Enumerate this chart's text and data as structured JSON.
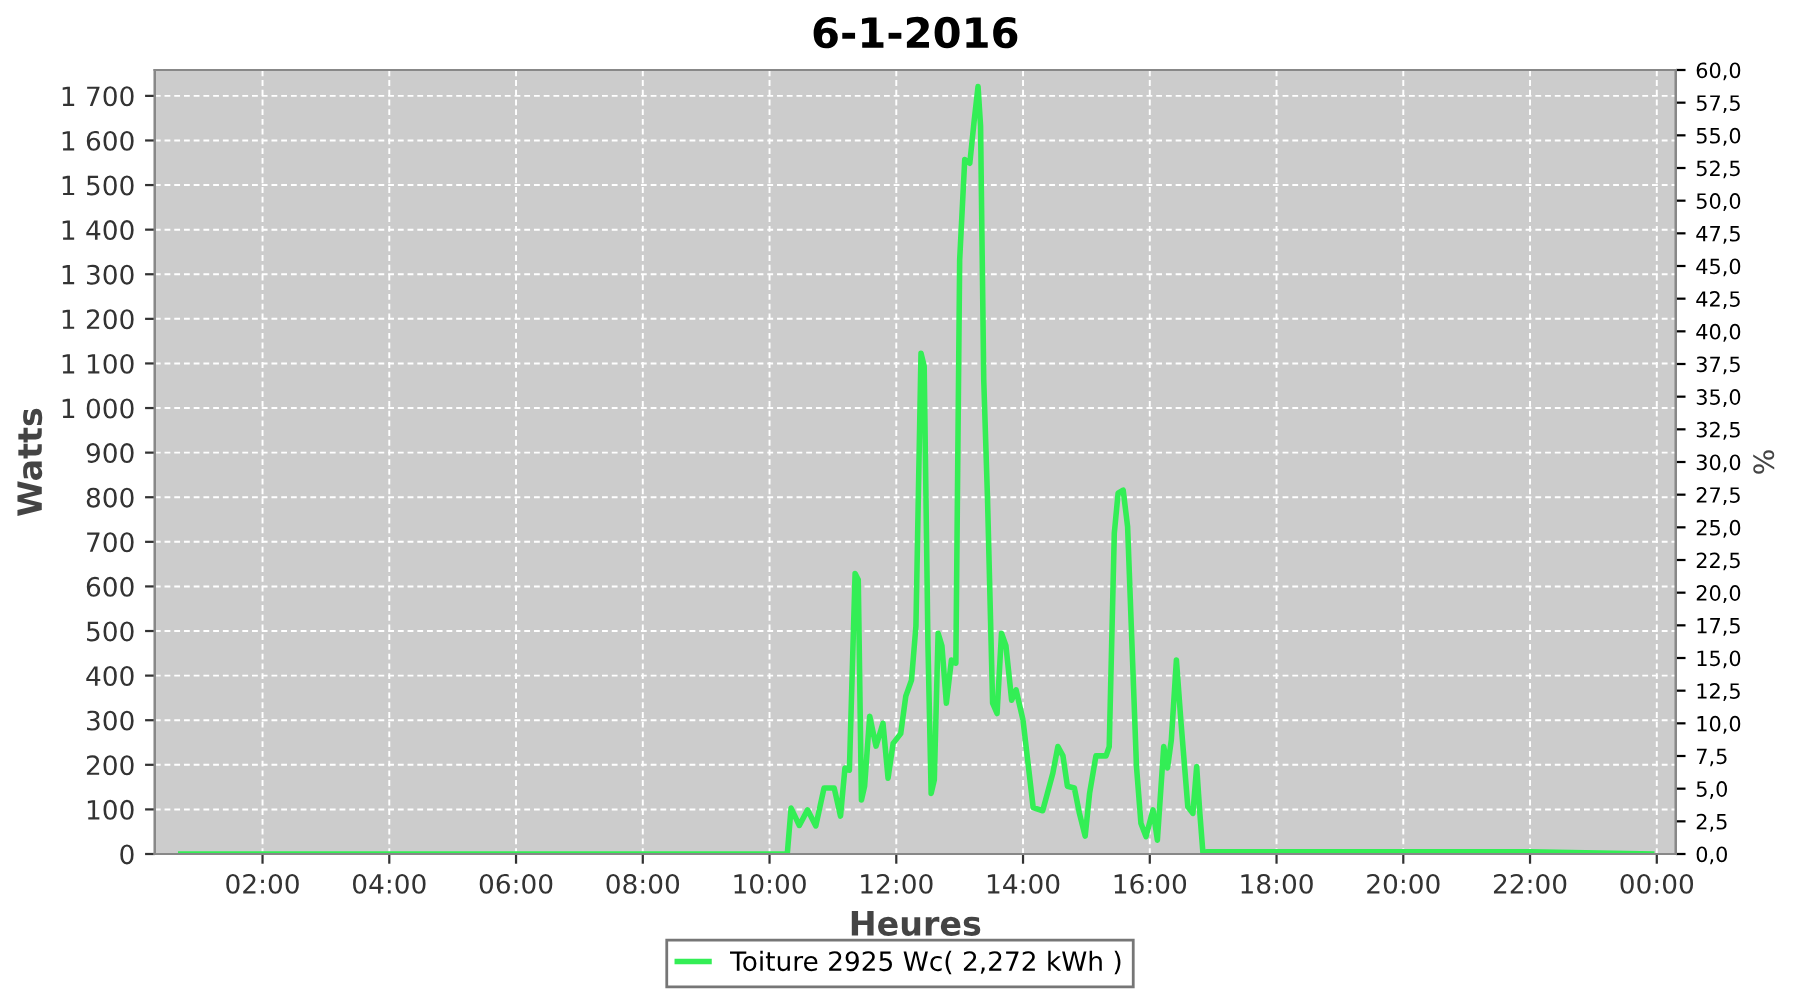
{
  "chart_data": {
    "type": "line",
    "title": "6-1-2016",
    "xlabel": "Heures",
    "ylabel": "Watts",
    "y2label": "%",
    "xlim": [
      0.3,
      24.3
    ],
    "ylim": [
      0,
      1758
    ],
    "y2lim": [
      0,
      60
    ],
    "xticks": [
      {
        "value": 2,
        "label": "02:00"
      },
      {
        "value": 4,
        "label": "04:00"
      },
      {
        "value": 6,
        "label": "06:00"
      },
      {
        "value": 8,
        "label": "08:00"
      },
      {
        "value": 10,
        "label": "10:00"
      },
      {
        "value": 12,
        "label": "12:00"
      },
      {
        "value": 14,
        "label": "14:00"
      },
      {
        "value": 16,
        "label": "16:00"
      },
      {
        "value": 18,
        "label": "18:00"
      },
      {
        "value": 20,
        "label": "20:00"
      },
      {
        "value": 22,
        "label": "22:00"
      },
      {
        "value": 24,
        "label": "00:00"
      }
    ],
    "yticks": [
      0,
      100,
      200,
      300,
      400,
      500,
      600,
      700,
      800,
      900,
      {
        "value": 1000,
        "label": "1 000"
      },
      {
        "value": 1100,
        "label": "1 100"
      },
      {
        "value": 1200,
        "label": "1 200"
      },
      {
        "value": 1300,
        "label": "1 300"
      },
      {
        "value": 1400,
        "label": "1 400"
      },
      {
        "value": 1500,
        "label": "1 500"
      },
      {
        "value": 1600,
        "label": "1 600"
      },
      {
        "value": 1700,
        "label": "1 700"
      }
    ],
    "y2ticks": [
      {
        "value": 0,
        "label": "0,0"
      },
      {
        "value": 2.5,
        "label": "2,5"
      },
      {
        "value": 5,
        "label": "5,0"
      },
      {
        "value": 7.5,
        "label": "7,5"
      },
      {
        "value": 10,
        "label": "10,0"
      },
      {
        "value": 12.5,
        "label": "12,5"
      },
      {
        "value": 15,
        "label": "15,0"
      },
      {
        "value": 17.5,
        "label": "17,5"
      },
      {
        "value": 20,
        "label": "20,0"
      },
      {
        "value": 22.5,
        "label": "22,5"
      },
      {
        "value": 25,
        "label": "25,0"
      },
      {
        "value": 27.5,
        "label": "27,5"
      },
      {
        "value": 30,
        "label": "30,0"
      },
      {
        "value": 32.5,
        "label": "32,5"
      },
      {
        "value": 35,
        "label": "35,0"
      },
      {
        "value": 37.5,
        "label": "37,5"
      },
      {
        "value": 40,
        "label": "40,0"
      },
      {
        "value": 42.5,
        "label": "42,5"
      },
      {
        "value": 45,
        "label": "45,0"
      },
      {
        "value": 47.5,
        "label": "47,5"
      },
      {
        "value": 50,
        "label": "50,0"
      },
      {
        "value": 52.5,
        "label": "52,5"
      },
      {
        "value": 55,
        "label": "55,0"
      },
      {
        "value": 57.5,
        "label": "57,5"
      },
      {
        "value": 60,
        "label": "60,0"
      }
    ],
    "grid": true,
    "legend": "bottom",
    "marker": "none",
    "line_style": "solid",
    "series": [
      {
        "name": "Toiture 2925 Wc( 2,272 kWh )",
        "color": "#33ee55",
        "x": [
          0.71,
          2.0,
          4.0,
          6.0,
          8.0,
          10.0,
          10.28,
          10.34,
          10.47,
          10.6,
          10.73,
          10.86,
          11.02,
          11.12,
          11.19,
          11.26,
          11.35,
          11.4,
          11.45,
          11.5,
          11.58,
          11.68,
          11.79,
          11.87,
          11.95,
          12.07,
          12.15,
          12.24,
          12.31,
          12.39,
          12.44,
          12.5,
          12.55,
          12.6,
          12.66,
          12.72,
          12.79,
          12.87,
          12.94,
          13.0,
          13.08,
          13.16,
          13.23,
          13.29,
          13.33,
          13.38,
          13.44,
          13.52,
          13.59,
          13.66,
          13.73,
          13.82,
          13.89,
          14.0,
          14.16,
          14.31,
          14.47,
          14.55,
          14.63,
          14.7,
          14.81,
          14.89,
          14.98,
          15.05,
          15.15,
          15.31,
          15.36,
          15.44,
          15.5,
          15.58,
          15.65,
          15.79,
          15.86,
          15.94,
          16.05,
          16.12,
          16.22,
          16.28,
          16.34,
          16.42,
          16.49,
          16.6,
          16.68,
          16.74,
          16.79,
          16.84,
          16.9,
          18.0,
          20.0,
          22.0,
          23.92
        ],
        "values": [
          0,
          0,
          0,
          0,
          0,
          0,
          0,
          103,
          64,
          99,
          63,
          148,
          148,
          85,
          193,
          188,
          629,
          615,
          121,
          152,
          309,
          242,
          293,
          170,
          248,
          270,
          354,
          390,
          511,
          1123,
          1094,
          467,
          136,
          166,
          495,
          467,
          338,
          435,
          428,
          1332,
          1557,
          1549,
          1646,
          1721,
          1632,
          1063,
          794,
          338,
          315,
          495,
          467,
          345,
          368,
          300,
          104,
          97,
          181,
          241,
          220,
          152,
          148,
          91,
          40,
          136,
          220,
          220,
          241,
          719,
          809,
          816,
          734,
          196,
          69,
          39,
          99,
          31,
          241,
          193,
          256,
          435,
          300,
          106,
          91,
          196,
          91,
          0,
          5,
          5,
          5,
          5,
          0
        ]
      }
    ]
  }
}
